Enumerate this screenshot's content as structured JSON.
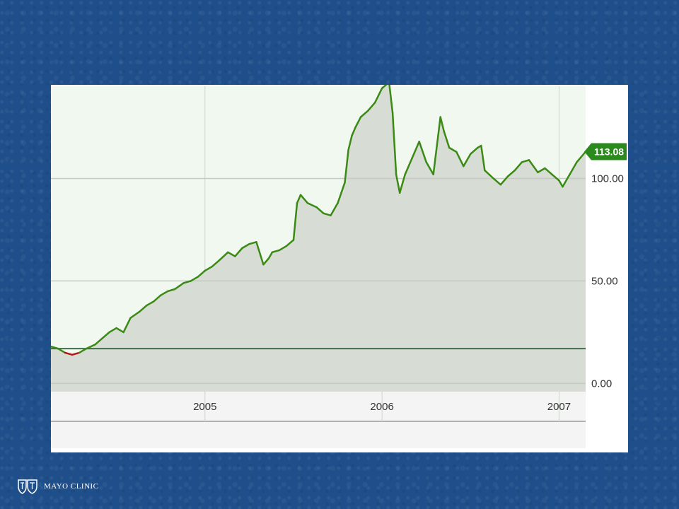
{
  "chart_data": {
    "type": "area",
    "y_tick_labels": [
      "0.00",
      "50.00",
      "100.00"
    ],
    "y_ticks": [
      0,
      50,
      100
    ],
    "x_tick_labels": [
      "2005",
      "2006",
      "2007"
    ],
    "x_ticks": [
      2005.0,
      2006.0,
      2007.0
    ],
    "xlim": [
      2004.13,
      2007.15
    ],
    "ylim": [
      -4,
      145
    ],
    "last_price_label": "113.08",
    "last_price": 113.08,
    "reference_level": 17,
    "grid": true,
    "colors": {
      "line_up": "#3a8a14",
      "line_down": "#b01818",
      "area_fill": "#d7dcd5",
      "plot_bg": "#f1f8ef",
      "reference_line": "#3e6e4a",
      "price_tag": "#2a8a1c"
    },
    "series": [
      {
        "x": [
          2004.13,
          2004.17,
          2004.21,
          2004.25,
          2004.29,
          2004.33,
          2004.38,
          2004.42,
          2004.46,
          2004.5,
          2004.54,
          2004.58,
          2004.63,
          2004.67,
          2004.71,
          2004.75,
          2004.79,
          2004.83,
          2004.88,
          2004.92,
          2004.96,
          2005.0,
          2005.04,
          2005.08,
          2005.13,
          2005.17,
          2005.21,
          2005.25,
          2005.29,
          2005.33,
          2005.36,
          2005.38,
          2005.42,
          2005.46,
          2005.5,
          2005.52,
          2005.54,
          2005.58,
          2005.63,
          2005.67,
          2005.71,
          2005.75,
          2005.79,
          2005.81,
          2005.83,
          2005.85,
          2005.88,
          2005.92,
          2005.96,
          2006.0,
          2006.04,
          2006.06,
          2006.08,
          2006.1,
          2006.13,
          2006.17,
          2006.21,
          2006.25,
          2006.29,
          2006.33,
          2006.35,
          2006.38,
          2006.42,
          2006.46,
          2006.5,
          2006.54,
          2006.56,
          2006.58,
          2006.63,
          2006.67,
          2006.71,
          2006.75,
          2006.79,
          2006.83,
          2006.88,
          2006.92,
          2006.96,
          2007.0,
          2007.02,
          2007.06,
          2007.1,
          2007.15
        ],
        "y": [
          18,
          17,
          15,
          14,
          15,
          17,
          19,
          22,
          25,
          27,
          25,
          32,
          35,
          38,
          40,
          43,
          45,
          46,
          49,
          50,
          52,
          55,
          57,
          60,
          64,
          62,
          66,
          68,
          69,
          58,
          61,
          64,
          65,
          67,
          70,
          88,
          92,
          88,
          86,
          83,
          82,
          88,
          98,
          114,
          121,
          125,
          130,
          133,
          137,
          144,
          147,
          132,
          102,
          93,
          102,
          110,
          118,
          108,
          102,
          130,
          123,
          115,
          113,
          106,
          112,
          115,
          116,
          104,
          100,
          97,
          101,
          104,
          108,
          109,
          103,
          105,
          102,
          99,
          96,
          102,
          108,
          113.08
        ]
      }
    ]
  },
  "branding": {
    "logo_text": "MAYO CLINIC"
  }
}
